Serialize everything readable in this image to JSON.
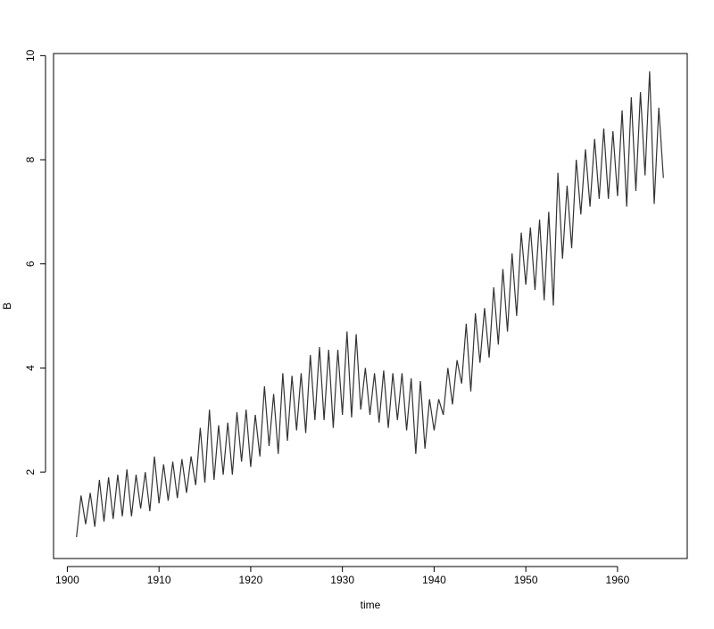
{
  "chart_data": {
    "type": "line",
    "xlabel": "time",
    "ylabel": "B",
    "color": "#333333",
    "x": [
      1901,
      1901.5,
      1902,
      1902.5,
      1903,
      1903.5,
      1904,
      1904.5,
      1905,
      1905.5,
      1906,
      1906.5,
      1907,
      1907.5,
      1908,
      1908.5,
      1909,
      1909.5,
      1910,
      1910.5,
      1911,
      1911.5,
      1912,
      1912.5,
      1913,
      1913.5,
      1914,
      1914.5,
      1915,
      1915.5,
      1916,
      1916.5,
      1917,
      1917.5,
      1918,
      1918.5,
      1919,
      1919.5,
      1920,
      1920.5,
      1921,
      1921.5,
      1922,
      1922.5,
      1923,
      1923.5,
      1924,
      1924.5,
      1925,
      1925.5,
      1926,
      1926.5,
      1927,
      1927.5,
      1928,
      1928.5,
      1929,
      1929.5,
      1930,
      1930.5,
      1931,
      1931.5,
      1932,
      1932.5,
      1933,
      1933.5,
      1934,
      1934.5,
      1935,
      1935.5,
      1936,
      1936.5,
      1937,
      1937.5,
      1938,
      1938.5,
      1939,
      1939.5,
      1940,
      1940.5,
      1941,
      1941.5,
      1942,
      1942.5,
      1943,
      1943.5,
      1944,
      1944.5,
      1945,
      1945.5,
      1946,
      1946.5,
      1947,
      1947.5,
      1948,
      1948.5,
      1949,
      1949.5,
      1950,
      1950.5,
      1951,
      1951.5,
      1952,
      1952.5,
      1953,
      1953.5,
      1954,
      1954.5,
      1955,
      1955.5,
      1956,
      1956.5,
      1957,
      1957.5,
      1958,
      1958.5,
      1959,
      1959.5,
      1960,
      1960.5,
      1961,
      1961.5,
      1962,
      1962.5,
      1963,
      1963.5,
      1964,
      1964.5,
      1965
    ],
    "values": [
      0.75,
      1.55,
      1.0,
      1.6,
      0.95,
      1.85,
      1.05,
      1.9,
      1.1,
      1.95,
      1.15,
      2.05,
      1.15,
      1.95,
      1.3,
      2.0,
      1.25,
      2.3,
      1.4,
      2.15,
      1.45,
      2.2,
      1.5,
      2.25,
      1.6,
      2.3,
      1.75,
      2.85,
      1.8,
      3.2,
      1.85,
      2.9,
      1.95,
      2.95,
      1.95,
      3.15,
      2.2,
      3.2,
      2.1,
      3.1,
      2.3,
      3.65,
      2.5,
      3.5,
      2.35,
      3.9,
      2.6,
      3.85,
      2.8,
      3.9,
      2.75,
      4.25,
      3.0,
      4.4,
      3.0,
      4.35,
      2.85,
      4.35,
      3.1,
      4.7,
      3.05,
      4.65,
      3.2,
      4.0,
      3.1,
      3.9,
      2.95,
      3.95,
      2.85,
      3.9,
      3.0,
      3.9,
      2.8,
      3.8,
      2.35,
      3.75,
      2.45,
      3.4,
      2.8,
      3.4,
      3.1,
      4.0,
      3.3,
      4.15,
      3.7,
      4.85,
      3.55,
      5.05,
      4.1,
      5.15,
      4.2,
      5.55,
      4.45,
      5.9,
      4.7,
      6.2,
      5.0,
      6.6,
      5.6,
      6.7,
      5.5,
      6.85,
      5.3,
      7.0,
      5.2,
      7.75,
      6.1,
      7.5,
      6.3,
      8.0,
      6.95,
      8.2,
      7.1,
      8.4,
      7.25,
      8.6,
      7.25,
      8.55,
      7.3,
      8.95,
      7.1,
      9.2,
      7.4,
      9.3,
      7.7,
      9.7,
      7.15,
      9.0,
      7.65
    ],
    "xlim": [
      1898.5,
      1967.6
    ],
    "ylim": [
      0.34,
      10.04
    ],
    "xticks": [
      1900,
      1910,
      1920,
      1930,
      1940,
      1950,
      1960
    ],
    "yticks": [
      2,
      4,
      6,
      8,
      10
    ]
  }
}
